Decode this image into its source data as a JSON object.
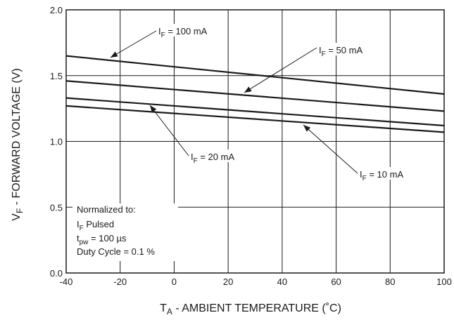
{
  "chart_data": {
    "type": "line",
    "title": "",
    "xlabel": {
      "main": "T",
      "sub": "A",
      "rest": " - AMBIENT TEMPERATURE (˚C)"
    },
    "ylabel": {
      "main": "V",
      "sub": "F",
      "rest": " - FORWARD VOLTAGE (V)"
    },
    "xlim": [
      -40,
      100
    ],
    "ylim": [
      0,
      2.0
    ],
    "xticks": [
      "-40",
      "-20",
      "0",
      "20",
      "40",
      "60",
      "80",
      "100"
    ],
    "yticks": [
      "0.0",
      "0.5",
      "1.0",
      "1.5",
      "2.0"
    ],
    "grid": true,
    "series": [
      {
        "label": {
          "main": "I",
          "sub": "F",
          "rest": " = 100 mA"
        },
        "x": [
          -40,
          100
        ],
        "y": [
          1.65,
          1.36
        ]
      },
      {
        "label": {
          "main": "I",
          "sub": "F",
          "rest": " = 50 mA"
        },
        "x": [
          -40,
          100
        ],
        "y": [
          1.46,
          1.23
        ]
      },
      {
        "label": {
          "main": "I",
          "sub": "F",
          "rest": " = 20 mA"
        },
        "x": [
          -40,
          100
        ],
        "y": [
          1.33,
          1.12
        ]
      },
      {
        "label": {
          "main": "I",
          "sub": "F",
          "rest": " = 10 mA"
        },
        "x": [
          -40,
          100
        ],
        "y": [
          1.27,
          1.07
        ]
      }
    ],
    "annotation": {
      "line1": "Normalized to:",
      "line2": {
        "main": "I",
        "sub": "F",
        "rest": " Pulsed"
      },
      "line3": {
        "main": "t",
        "sub": "pw",
        "rest": " = 100 µs"
      },
      "line4": "Duty Cycle = 0.1 %"
    }
  }
}
